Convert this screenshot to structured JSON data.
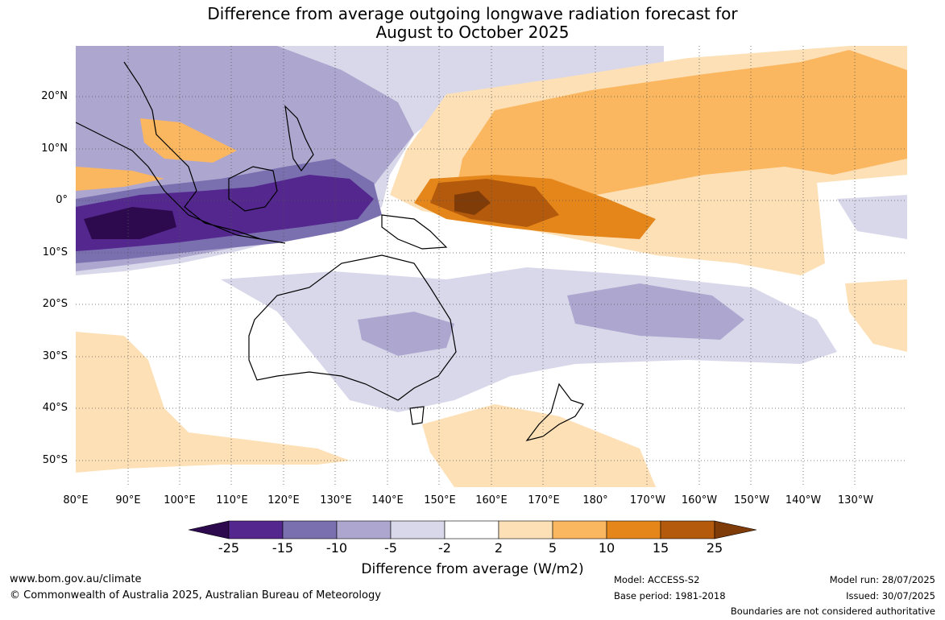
{
  "title": {
    "line1": "Difference from average outgoing longwave radiation forecast for",
    "line2": "August to October 2025"
  },
  "lat_labels": [
    "20°N",
    "10°N",
    "0°",
    "10°S",
    "20°S",
    "30°S",
    "40°S",
    "50°S"
  ],
  "lon_labels": [
    "80°E",
    "90°E",
    "100°E",
    "110°E",
    "120°E",
    "130°E",
    "140°E",
    "150°E",
    "160°E",
    "170°E",
    "180°",
    "170°W",
    "160°W",
    "150°W",
    "140°W",
    "130°W"
  ],
  "colorbar": {
    "ticks": [
      "-25",
      "-15",
      "-10",
      "-5",
      "-2",
      "2",
      "5",
      "10",
      "15",
      "25"
    ],
    "colors": [
      "#2d0a4e",
      "#54278f",
      "#7a6faf",
      "#ada7d0",
      "#d9d8ea",
      "#ffffff",
      "#fde0b6",
      "#fbb660",
      "#e5861a",
      "#b45a0c",
      "#7f3b08"
    ],
    "title": "Difference from average (W/m2)"
  },
  "footer": {
    "website": "www.bom.gov.au/climate",
    "copyright": "© Commonwealth of Australia 2025, Australian Bureau of Meteorology",
    "model": "Model: ACCESS-S2",
    "base_period": "Base period: 1981-2018",
    "model_run": "Model run: 28/07/2025",
    "issued": "Issued: 30/07/2025",
    "disclaimer": "Boundaries are not considered authoritative"
  }
}
